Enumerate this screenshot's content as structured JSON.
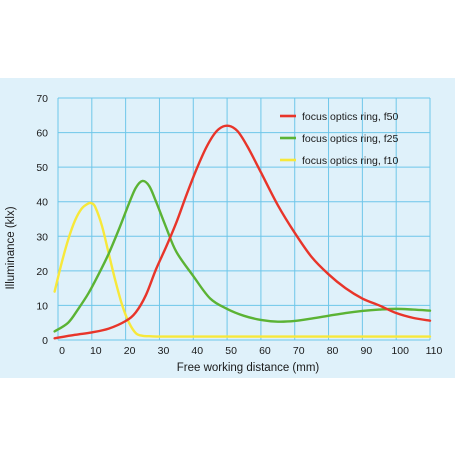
{
  "chart_data": {
    "type": "line",
    "title": "",
    "xlabel": "Free working distance (mm)",
    "ylabel": "Illuminance (klx)",
    "xlim": [
      0,
      110
    ],
    "ylim": [
      0,
      70
    ],
    "xticks": [
      0,
      10,
      20,
      30,
      40,
      50,
      60,
      70,
      80,
      90,
      100,
      110
    ],
    "yticks": [
      0,
      10,
      20,
      30,
      40,
      50,
      60,
      70
    ],
    "grid": true,
    "legend_position": "top-right",
    "background_color": "#dff1fa",
    "grid_color": "#6ec6e9",
    "series": [
      {
        "name": "focus optics ring, f50",
        "color": "#e8352a",
        "x": [
          -1,
          5,
          10,
          15,
          20,
          23,
          26,
          29,
          32,
          35,
          38,
          41,
          44,
          47,
          50,
          53,
          56,
          60,
          65,
          70,
          75,
          80,
          85,
          90,
          95,
          100,
          105,
          110
        ],
        "y": [
          0.5,
          1.5,
          2.2,
          3.3,
          5.5,
          8,
          13,
          20.5,
          27,
          34,
          42,
          49.5,
          56,
          60.5,
          62,
          60.5,
          56,
          48.5,
          39,
          31,
          24,
          19,
          15,
          12,
          10,
          7.8,
          6.4,
          5.6
        ]
      },
      {
        "name": "focus optics ring, f25",
        "color": "#5bb334",
        "x": [
          -1,
          3,
          6,
          9,
          12,
          15,
          18,
          21,
          23,
          25,
          27,
          29,
          32,
          35,
          40,
          45,
          50,
          55,
          60,
          65,
          70,
          75,
          80,
          85,
          90,
          95,
          100,
          105,
          110
        ],
        "y": [
          2.5,
          5,
          9,
          13.5,
          19,
          25,
          32,
          39.5,
          44,
          46,
          44.5,
          40,
          32.5,
          25.5,
          18.5,
          12,
          9,
          7,
          5.8,
          5.3,
          5.5,
          6.2,
          7,
          7.8,
          8.4,
          8.8,
          9,
          8.8,
          8.5
        ]
      },
      {
        "name": "focus optics ring, f10",
        "color": "#f7e83a",
        "x": [
          -1,
          1,
          3,
          5,
          7,
          9,
          10,
          11,
          13,
          15,
          17,
          19,
          21,
          23,
          25,
          27,
          30,
          40,
          60,
          80,
          100,
          110
        ],
        "y": [
          14,
          22,
          29,
          34.5,
          38,
          39.5,
          39.5,
          38.5,
          33,
          25,
          17,
          10,
          5,
          2,
          1.2,
          1.1,
          1,
          1,
          1,
          1,
          1,
          1
        ]
      }
    ]
  }
}
